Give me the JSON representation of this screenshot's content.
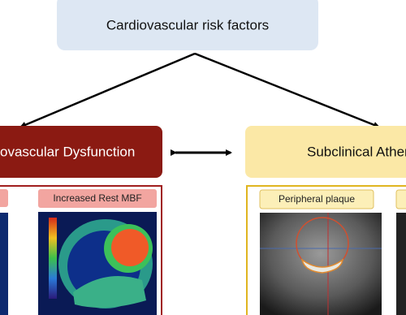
{
  "top_box": {
    "label": "Cardiovascular risk factors"
  },
  "left_box": {
    "label": "ovascular Dysfunction"
  },
  "right_box": {
    "label": "Subclinical Ather"
  },
  "left_panel": {
    "image_label": "Increased Rest MBF"
  },
  "right_panel": {
    "image_label": "Peripheral plaque"
  }
}
